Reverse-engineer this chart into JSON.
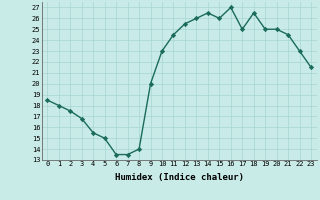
{
  "x": [
    0,
    1,
    2,
    3,
    4,
    5,
    6,
    7,
    8,
    9,
    10,
    11,
    12,
    13,
    14,
    15,
    16,
    17,
    18,
    19,
    20,
    21,
    22,
    23
  ],
  "y": [
    18.5,
    18.0,
    17.5,
    16.8,
    15.5,
    15.0,
    13.5,
    13.5,
    14.0,
    20.0,
    23.0,
    24.5,
    25.5,
    26.0,
    26.5,
    26.0,
    27.0,
    25.0,
    26.5,
    25.0,
    25.0,
    24.5,
    23.0,
    21.5
  ],
  "line_color": "#1a6b5a",
  "marker": "D",
  "markersize": 2.2,
  "linewidth": 1.0,
  "bg_color": "#c8ebe8",
  "grid_color": "#a8d5d0",
  "xlabel": "Humidex (Indice chaleur)",
  "xlim": [
    -0.5,
    23.5
  ],
  "ylim": [
    13,
    27.5
  ],
  "yticks": [
    13,
    14,
    15,
    16,
    17,
    18,
    19,
    20,
    21,
    22,
    23,
    24,
    25,
    26,
    27
  ],
  "xticks": [
    0,
    1,
    2,
    3,
    4,
    5,
    6,
    7,
    8,
    9,
    10,
    11,
    12,
    13,
    14,
    15,
    16,
    17,
    18,
    19,
    20,
    21,
    22,
    23
  ],
  "tick_fontsize": 5.0,
  "label_fontsize": 6.5
}
